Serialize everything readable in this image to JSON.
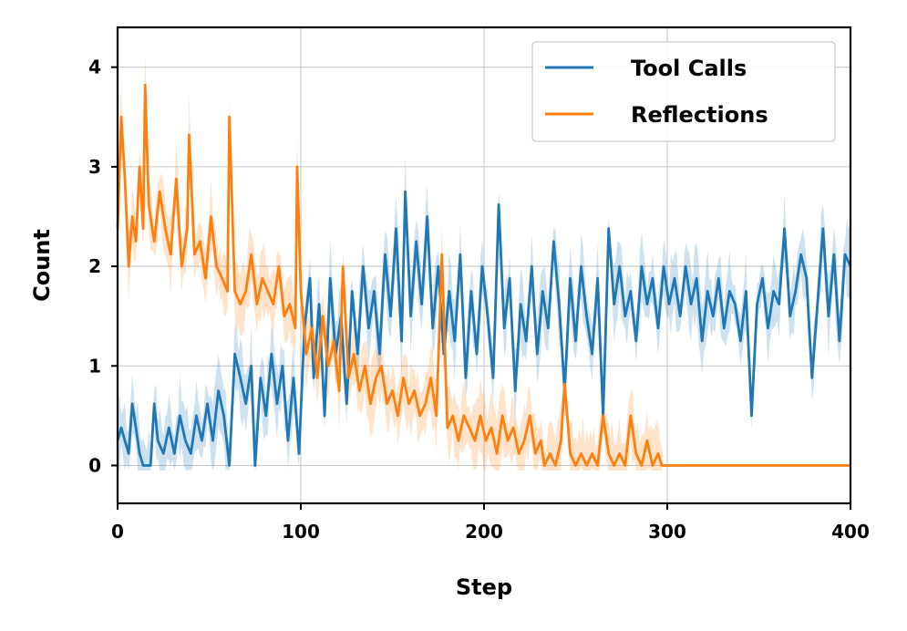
{
  "chart_data": {
    "type": "line",
    "title": "",
    "xlabel": "Step",
    "ylabel": "Count",
    "xlim": [
      0,
      400
    ],
    "ylim": [
      -0.38,
      4.4
    ],
    "xticks": [
      0,
      100,
      200,
      300,
      400
    ],
    "yticks": [
      0,
      1,
      2,
      3,
      4
    ],
    "grid": true,
    "legend_position": "top-right",
    "series": [
      {
        "name": "Tool Calls",
        "color": "#1f77b4",
        "band": true,
        "keypoints": [
          [
            0,
            0.25
          ],
          [
            2,
            0.38
          ],
          [
            4,
            0.25
          ],
          [
            6,
            0.12
          ],
          [
            8,
            0.62
          ],
          [
            10,
            0.38
          ],
          [
            12,
            0.12
          ],
          [
            14,
            0.0
          ],
          [
            18,
            0.0
          ],
          [
            20,
            0.62
          ],
          [
            22,
            0.25
          ],
          [
            25,
            0.12
          ],
          [
            28,
            0.38
          ],
          [
            31,
            0.12
          ],
          [
            34,
            0.5
          ],
          [
            37,
            0.25
          ],
          [
            40,
            0.12
          ],
          [
            43,
            0.5
          ],
          [
            46,
            0.25
          ],
          [
            49,
            0.62
          ],
          [
            52,
            0.25
          ],
          [
            55,
            0.75
          ],
          [
            58,
            0.5
          ],
          [
            61,
            0.0
          ],
          [
            64,
            1.12
          ],
          [
            67,
            0.88
          ],
          [
            70,
            0.62
          ],
          [
            73,
            1.0
          ],
          [
            75,
            0.0
          ],
          [
            78,
            0.88
          ],
          [
            81,
            0.5
          ],
          [
            84,
            1.12
          ],
          [
            87,
            0.62
          ],
          [
            90,
            1.0
          ],
          [
            93,
            0.25
          ],
          [
            96,
            0.88
          ],
          [
            99,
            0.12
          ],
          [
            102,
            1.38
          ],
          [
            105,
            1.88
          ],
          [
            107,
            0.88
          ],
          [
            110,
            1.62
          ],
          [
            113,
            0.5
          ],
          [
            116,
            1.88
          ],
          [
            119,
            1.12
          ],
          [
            122,
            1.5
          ],
          [
            125,
            0.62
          ],
          [
            128,
            1.75
          ],
          [
            131,
            1.12
          ],
          [
            134,
            2.0
          ],
          [
            137,
            1.38
          ],
          [
            140,
            1.75
          ],
          [
            143,
            1.12
          ],
          [
            146,
            2.12
          ],
          [
            149,
            1.5
          ],
          [
            152,
            2.38
          ],
          [
            155,
            1.25
          ],
          [
            157,
            2.75
          ],
          [
            160,
            1.5
          ],
          [
            163,
            2.25
          ],
          [
            166,
            1.62
          ],
          [
            169,
            2.5
          ],
          [
            172,
            1.38
          ],
          [
            175,
            2.0
          ],
          [
            178,
            1.12
          ],
          [
            181,
            1.75
          ],
          [
            184,
            1.25
          ],
          [
            187,
            2.12
          ],
          [
            190,
            0.88
          ],
          [
            193,
            1.75
          ],
          [
            196,
            1.12
          ],
          [
            199,
            2.0
          ],
          [
            202,
            1.5
          ],
          [
            205,
            0.88
          ],
          [
            208,
            2.62
          ],
          [
            211,
            1.38
          ],
          [
            214,
            1.88
          ],
          [
            217,
            0.75
          ],
          [
            220,
            1.62
          ],
          [
            223,
            1.25
          ],
          [
            226,
            2.0
          ],
          [
            229,
            1.12
          ],
          [
            232,
            1.75
          ],
          [
            235,
            1.38
          ],
          [
            238,
            2.25
          ],
          [
            241,
            1.62
          ],
          [
            244,
            0.75
          ],
          [
            247,
            1.88
          ],
          [
            250,
            1.25
          ],
          [
            253,
            2.0
          ],
          [
            256,
            1.5
          ],
          [
            259,
            1.12
          ],
          [
            262,
            1.88
          ],
          [
            265,
            0.5
          ],
          [
            268,
            2.38
          ],
          [
            271,
            1.62
          ],
          [
            274,
            2.0
          ],
          [
            277,
            1.5
          ],
          [
            280,
            1.75
          ],
          [
            283,
            1.25
          ],
          [
            286,
            2.0
          ],
          [
            289,
            1.62
          ],
          [
            292,
            1.88
          ],
          [
            295,
            1.38
          ],
          [
            298,
            2.0
          ],
          [
            301,
            1.62
          ],
          [
            304,
            1.88
          ],
          [
            307,
            1.5
          ],
          [
            310,
            2.0
          ],
          [
            313,
            1.62
          ],
          [
            316,
            1.88
          ],
          [
            319,
            1.25
          ],
          [
            322,
            1.75
          ],
          [
            325,
            1.5
          ],
          [
            328,
            1.88
          ],
          [
            331,
            1.38
          ],
          [
            334,
            1.75
          ],
          [
            337,
            1.62
          ],
          [
            340,
            1.25
          ],
          [
            343,
            1.75
          ],
          [
            346,
            0.5
          ],
          [
            349,
            1.62
          ],
          [
            352,
            1.88
          ],
          [
            355,
            1.38
          ],
          [
            358,
            1.75
          ],
          [
            361,
            1.62
          ],
          [
            364,
            2.38
          ],
          [
            367,
            1.5
          ],
          [
            370,
            1.75
          ],
          [
            373,
            2.12
          ],
          [
            376,
            1.88
          ],
          [
            379,
            0.88
          ],
          [
            382,
            1.62
          ],
          [
            385,
            2.38
          ],
          [
            388,
            1.5
          ],
          [
            391,
            2.12
          ],
          [
            394,
            1.25
          ],
          [
            397,
            2.12
          ],
          [
            400,
            2.0
          ]
        ]
      },
      {
        "name": "Reflections",
        "color": "#ff7f0e",
        "band": true,
        "keypoints": [
          [
            0,
            2.38
          ],
          [
            2,
            3.5
          ],
          [
            4,
            2.88
          ],
          [
            6,
            2.0
          ],
          [
            8,
            2.5
          ],
          [
            10,
            2.25
          ],
          [
            12,
            3.0
          ],
          [
            14,
            2.38
          ],
          [
            15,
            3.82
          ],
          [
            17,
            2.62
          ],
          [
            20,
            2.25
          ],
          [
            23,
            2.75
          ],
          [
            26,
            2.38
          ],
          [
            29,
            2.12
          ],
          [
            32,
            2.88
          ],
          [
            35,
            2.0
          ],
          [
            38,
            2.38
          ],
          [
            39,
            3.32
          ],
          [
            42,
            2.12
          ],
          [
            45,
            2.25
          ],
          [
            48,
            1.88
          ],
          [
            51,
            2.5
          ],
          [
            54,
            2.0
          ],
          [
            57,
            1.88
          ],
          [
            60,
            1.75
          ],
          [
            61,
            3.5
          ],
          [
            64,
            1.75
          ],
          [
            67,
            1.62
          ],
          [
            70,
            1.75
          ],
          [
            73,
            2.12
          ],
          [
            76,
            1.62
          ],
          [
            79,
            1.88
          ],
          [
            82,
            1.75
          ],
          [
            85,
            1.62
          ],
          [
            88,
            2.0
          ],
          [
            91,
            1.5
          ],
          [
            94,
            1.62
          ],
          [
            97,
            1.38
          ],
          [
            98,
            3.0
          ],
          [
            100,
            1.75
          ],
          [
            103,
            1.12
          ],
          [
            106,
            1.38
          ],
          [
            109,
            0.88
          ],
          [
            112,
            1.5
          ],
          [
            115,
            1.0
          ],
          [
            118,
            1.25
          ],
          [
            121,
            0.75
          ],
          [
            123,
            2.0
          ],
          [
            126,
            0.88
          ],
          [
            129,
            1.12
          ],
          [
            132,
            0.75
          ],
          [
            135,
            1.0
          ],
          [
            138,
            0.62
          ],
          [
            141,
            0.88
          ],
          [
            144,
            1.0
          ],
          [
            147,
            0.62
          ],
          [
            150,
            0.75
          ],
          [
            153,
            0.5
          ],
          [
            156,
            0.88
          ],
          [
            159,
            0.62
          ],
          [
            162,
            0.75
          ],
          [
            165,
            0.5
          ],
          [
            168,
            0.62
          ],
          [
            171,
            0.88
          ],
          [
            174,
            0.5
          ],
          [
            177,
            2.12
          ],
          [
            180,
            0.38
          ],
          [
            183,
            0.5
          ],
          [
            186,
            0.25
          ],
          [
            189,
            0.5
          ],
          [
            192,
            0.38
          ],
          [
            195,
            0.25
          ],
          [
            198,
            0.5
          ],
          [
            201,
            0.25
          ],
          [
            204,
            0.38
          ],
          [
            207,
            0.12
          ],
          [
            210,
            0.5
          ],
          [
            213,
            0.25
          ],
          [
            216,
            0.38
          ],
          [
            219,
            0.12
          ],
          [
            222,
            0.25
          ],
          [
            225,
            0.5
          ],
          [
            228,
            0.12
          ],
          [
            231,
            0.25
          ],
          [
            233,
            0.0
          ],
          [
            236,
            0.12
          ],
          [
            239,
            0.0
          ],
          [
            242,
            0.25
          ],
          [
            244,
            0.82
          ],
          [
            247,
            0.12
          ],
          [
            250,
            0.0
          ],
          [
            253,
            0.12
          ],
          [
            256,
            0.0
          ],
          [
            259,
            0.12
          ],
          [
            262,
            0.0
          ],
          [
            265,
            0.5
          ],
          [
            268,
            0.12
          ],
          [
            271,
            0.0
          ],
          [
            274,
            0.12
          ],
          [
            277,
            0.0
          ],
          [
            280,
            0.5
          ],
          [
            283,
            0.12
          ],
          [
            286,
            0.0
          ],
          [
            289,
            0.25
          ],
          [
            292,
            0.0
          ],
          [
            295,
            0.12
          ],
          [
            297,
            0.0
          ],
          [
            300,
            0.0
          ],
          [
            400,
            0.0
          ]
        ]
      }
    ]
  }
}
